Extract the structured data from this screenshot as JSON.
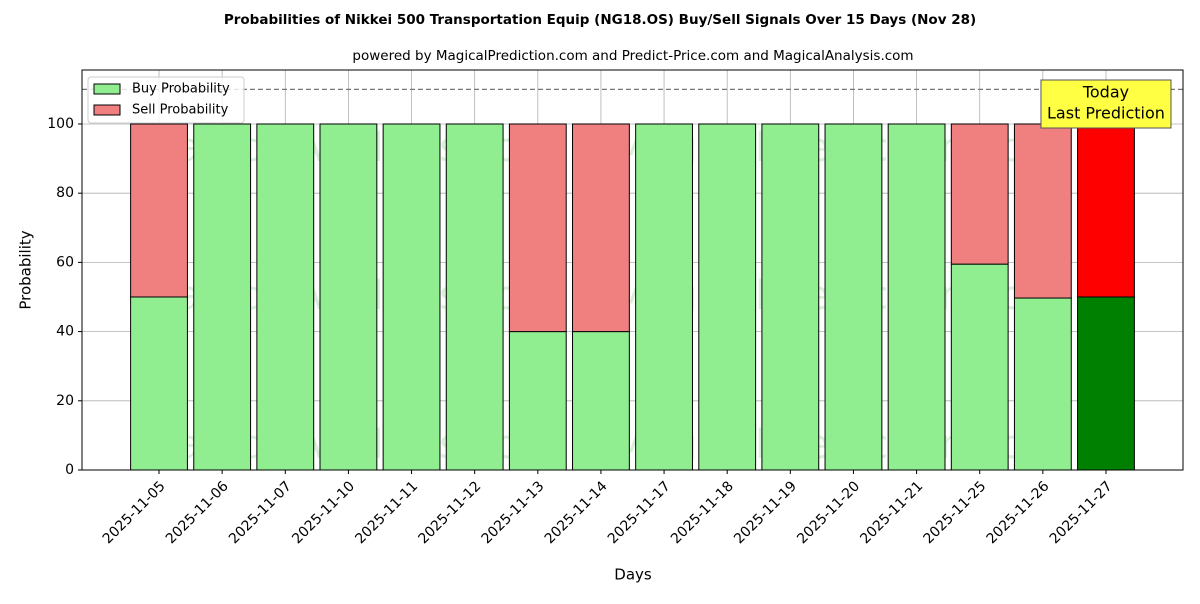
{
  "chart_data": {
    "type": "stacked_bar",
    "title": "Probabilities of Nikkei 500 Transportation Equip (NG18.OS) Buy/Sell Signals Over 15 Days (Nov 28)",
    "subtitle": "powered by MagicalPrediction.com and Predict-Price.com and MagicalAnalysis.com",
    "x_label": "Days",
    "y_label": "Probability",
    "categories": [
      "2025-11-05",
      "2025-11-06",
      "2025-11-07",
      "2025-11-10",
      "2025-11-11",
      "2025-11-12",
      "2025-11-13",
      "2025-11-14",
      "2025-11-17",
      "2025-11-18",
      "2025-11-19",
      "2025-11-20",
      "2025-11-21",
      "2025-11-25",
      "2025-11-26",
      "2025-11-27"
    ],
    "series": [
      {
        "name": "Buy Probability",
        "color": "#90ee90",
        "last_color": "#008000",
        "values": [
          50,
          100,
          100,
          100,
          100,
          100,
          40,
          40,
          100,
          100,
          100,
          100,
          100,
          59.5,
          49.7,
          50
        ]
      },
      {
        "name": "Sell Probability",
        "color": "#f08080",
        "last_color": "#ff0000",
        "values": [
          50,
          0,
          0,
          0,
          0,
          0,
          60,
          60,
          0,
          0,
          0,
          0,
          0,
          40.5,
          50.3,
          50
        ]
      }
    ],
    "ylim": [
      0,
      115.6
    ],
    "yticks": [
      0,
      20,
      40,
      60,
      80,
      100
    ],
    "grid": true,
    "threshold_line": 110,
    "legend": "upper left",
    "annotation": {
      "lines": [
        "Today",
        "Last Prediction"
      ],
      "color": "#ffff44"
    },
    "watermarks": [
      "MagicalAnalysis.com",
      "MagicalPrediction.com"
    ]
  }
}
